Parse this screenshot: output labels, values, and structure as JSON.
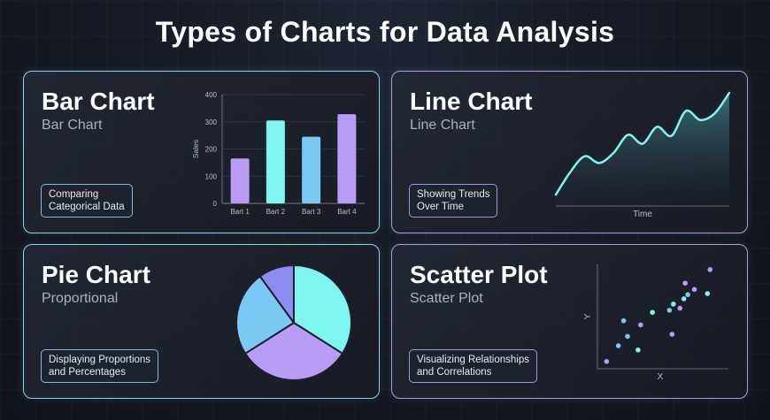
{
  "page": {
    "title": "Types of Charts for Data Analysis"
  },
  "cards": [
    {
      "title": "Bar Chart",
      "subtitle": "Bar Chart",
      "tag_line1": "Comparing",
      "tag_line2": "Categorical Data"
    },
    {
      "title": "Line Chart",
      "subtitle": "Line Chart",
      "tag_line1": "Showing Trends",
      "tag_line2": "Over Time"
    },
    {
      "title": "Pie Chart",
      "subtitle": "Proportional",
      "tag_line1": "Displaying Proportions",
      "tag_line2": "and Percentages"
    },
    {
      "title": "Scatter Plot",
      "subtitle": "Scatter Plot",
      "tag_line1": "Visualizing Relationships",
      "tag_line2": "and Correlations"
    }
  ],
  "chart_data": [
    {
      "type": "bar",
      "categories": [
        "Bart 1",
        "Bart 2",
        "Bart 3",
        "Bart 4"
      ],
      "values": [
        165,
        305,
        245,
        328
      ],
      "ylabel": "Sales",
      "xlabel": "",
      "ylim": [
        0,
        400
      ],
      "yticks": [
        0,
        100,
        200,
        300,
        400
      ],
      "grid": true,
      "colors": [
        "#b99cf5",
        "#7ef5ee",
        "#7cc8f4",
        "#b99cf5"
      ]
    },
    {
      "type": "area",
      "x": [
        0,
        1,
        2,
        3,
        4,
        5,
        6,
        7,
        8,
        9,
        10,
        11,
        12
      ],
      "y": [
        0.1,
        0.3,
        0.44,
        0.38,
        0.47,
        0.63,
        0.55,
        0.7,
        0.62,
        0.84,
        0.76,
        0.82,
        1.0
      ],
      "xlabel": "Time",
      "ylabel": "",
      "color": "#7ef5ee"
    },
    {
      "type": "pie",
      "values": [
        34,
        32,
        24,
        10
      ],
      "colors": [
        "#7ef5ee",
        "#b99cf5",
        "#7cc8f4",
        "#8c8cf2"
      ]
    },
    {
      "type": "scatter",
      "xlabel": "X",
      "ylabel": "Y",
      "points": [
        {
          "x": 0.07,
          "y": 0.07,
          "c": "#b99cf5"
        },
        {
          "x": 0.16,
          "y": 0.22,
          "c": "#7cc8f4"
        },
        {
          "x": 0.23,
          "y": 0.31,
          "c": "#7cc8f4"
        },
        {
          "x": 0.2,
          "y": 0.46,
          "c": "#7cc8f4"
        },
        {
          "x": 0.31,
          "y": 0.18,
          "c": "#7ef5ee"
        },
        {
          "x": 0.33,
          "y": 0.42,
          "c": "#b99cf5"
        },
        {
          "x": 0.42,
          "y": 0.54,
          "c": "#7ef5ee"
        },
        {
          "x": 0.57,
          "y": 0.33,
          "c": "#b99cf5"
        },
        {
          "x": 0.55,
          "y": 0.56,
          "c": "#7cc8f4"
        },
        {
          "x": 0.58,
          "y": 0.62,
          "c": "#7ef5ee"
        },
        {
          "x": 0.63,
          "y": 0.58,
          "c": "#b99cf5"
        },
        {
          "x": 0.66,
          "y": 0.67,
          "c": "#7ef5ee"
        },
        {
          "x": 0.67,
          "y": 0.82,
          "c": "#b99cf5"
        },
        {
          "x": 0.69,
          "y": 0.71,
          "c": "#7cc8f4"
        },
        {
          "x": 0.74,
          "y": 0.76,
          "c": "#b99cf5"
        },
        {
          "x": 0.84,
          "y": 0.72,
          "c": "#7ef5ee"
        },
        {
          "x": 0.86,
          "y": 0.95,
          "c": "#b99cf5"
        }
      ]
    }
  ]
}
